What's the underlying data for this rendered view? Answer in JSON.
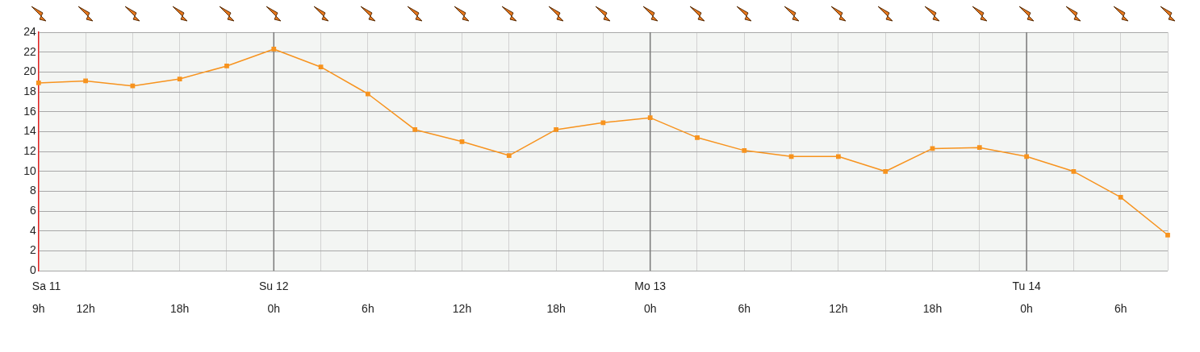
{
  "chart_data": {
    "type": "line",
    "categories": [
      "9h",
      "12h",
      null,
      "18h",
      null,
      "0h",
      null,
      "6h",
      null,
      "12h",
      null,
      "18h",
      null,
      "0h",
      null,
      "6h",
      null,
      "12h",
      null,
      "18h",
      null,
      "0h",
      null,
      "6h",
      null
    ],
    "series": [
      {
        "color": "#f7931e",
        "values": [
          18.9,
          19.1,
          18.6,
          19.3,
          20.6,
          22.3,
          20.5,
          17.8,
          14.2,
          13.0,
          11.6,
          14.2,
          14.9,
          15.4,
          13.4,
          12.1,
          11.5,
          11.5,
          10.0,
          12.3,
          12.4,
          11.5,
          10.0,
          7.4,
          3.6
        ]
      }
    ],
    "annotations": [
      "Sa 11",
      "Su 12",
      "Mo 13",
      "Tu 14"
    ],
    "ylim": [
      0,
      24
    ],
    "yticks": [
      0,
      2,
      4,
      6,
      8,
      10,
      12,
      14,
      16,
      18,
      20,
      22,
      24
    ],
    "grid": true,
    "legend": false,
    "marker": "square",
    "line_style": "solid"
  }
}
